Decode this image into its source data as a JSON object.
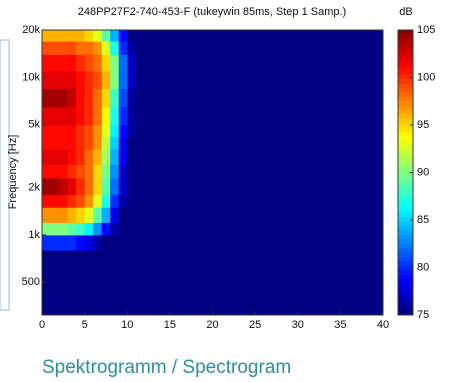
{
  "chart_data": {
    "type": "heatmap",
    "title": "248PP27F2-740-453-F (tukeywin 85ms, Step 1 Samp.)",
    "y_label": "Frequency [Hz]",
    "colorbar_label": "dB",
    "caption": "Spektrogramm / Spectrogram",
    "xlim": [
      0,
      40
    ],
    "xticks": [
      0,
      5,
      10,
      15,
      20,
      25,
      30,
      35,
      40
    ],
    "ylim": [
      310,
      20000
    ],
    "y_scale": "log",
    "yticks": [
      500,
      {
        "value": 1000,
        "label": "1k"
      },
      {
        "value": 2000,
        "label": "2k"
      },
      {
        "value": 5000,
        "label": "5k"
      },
      {
        "value": 10000,
        "label": "10k"
      },
      {
        "value": 20000,
        "label": "20k"
      }
    ],
    "clim": [
      75,
      105
    ],
    "cticks": [
      75,
      80,
      85,
      90,
      95,
      100,
      105
    ],
    "colormap": "jet",
    "xbins": [
      0,
      1,
      2,
      3,
      4,
      5,
      6,
      7,
      8,
      9,
      10,
      11,
      12,
      40
    ],
    "ybins": [
      310,
      800,
      1000,
      1200,
      1500,
      1800,
      2300,
      2800,
      3500,
      4200,
      5000,
      6500,
      8500,
      11000,
      14000,
      17000,
      20000
    ],
    "values": [
      [
        75,
        75,
        75,
        75,
        75,
        75,
        75,
        75,
        75,
        75,
        75,
        75,
        75
      ],
      [
        80,
        80,
        80,
        80,
        79,
        78,
        76,
        75,
        75,
        75,
        75,
        75,
        75
      ],
      [
        90,
        90,
        90,
        89,
        88,
        86,
        83,
        79,
        76,
        75,
        75,
        75,
        75
      ],
      [
        97,
        97,
        97,
        96,
        95,
        93,
        89,
        84,
        78,
        75,
        75,
        75,
        75
      ],
      [
        101,
        101,
        101,
        100,
        99,
        97,
        93,
        87,
        80,
        76,
        75,
        75,
        75
      ],
      [
        104,
        104,
        103,
        102,
        100,
        98,
        95,
        89,
        82,
        77,
        75,
        75,
        75
      ],
      [
        101,
        101,
        101,
        100,
        99,
        98,
        95,
        90,
        83,
        77,
        75,
        75,
        75
      ],
      [
        102,
        102,
        102,
        101,
        100,
        98,
        96,
        91,
        84,
        78,
        75,
        75,
        75
      ],
      [
        101,
        101,
        101,
        101,
        100,
        99,
        97,
        92,
        85,
        78,
        75,
        75,
        75
      ],
      [
        101,
        101,
        101,
        101,
        100,
        99,
        97,
        93,
        86,
        79,
        76,
        75,
        75
      ],
      [
        102,
        102,
        102,
        102,
        101,
        100,
        98,
        94,
        87,
        80,
        76,
        75,
        75
      ],
      [
        104,
        104,
        104,
        103,
        101,
        100,
        98,
        95,
        88,
        81,
        76,
        75,
        75
      ],
      [
        102,
        102,
        102,
        102,
        101,
        100,
        99,
        96,
        90,
        82,
        77,
        75,
        75
      ],
      [
        101,
        101,
        101,
        101,
        100,
        99,
        98,
        95,
        90,
        82,
        77,
        75,
        75
      ],
      [
        99,
        99,
        99,
        99,
        98,
        98,
        97,
        93,
        87,
        80,
        76,
        75,
        75
      ],
      [
        96,
        96,
        96,
        96,
        96,
        95,
        93,
        89,
        84,
        79,
        75,
        75,
        75
      ]
    ]
  }
}
